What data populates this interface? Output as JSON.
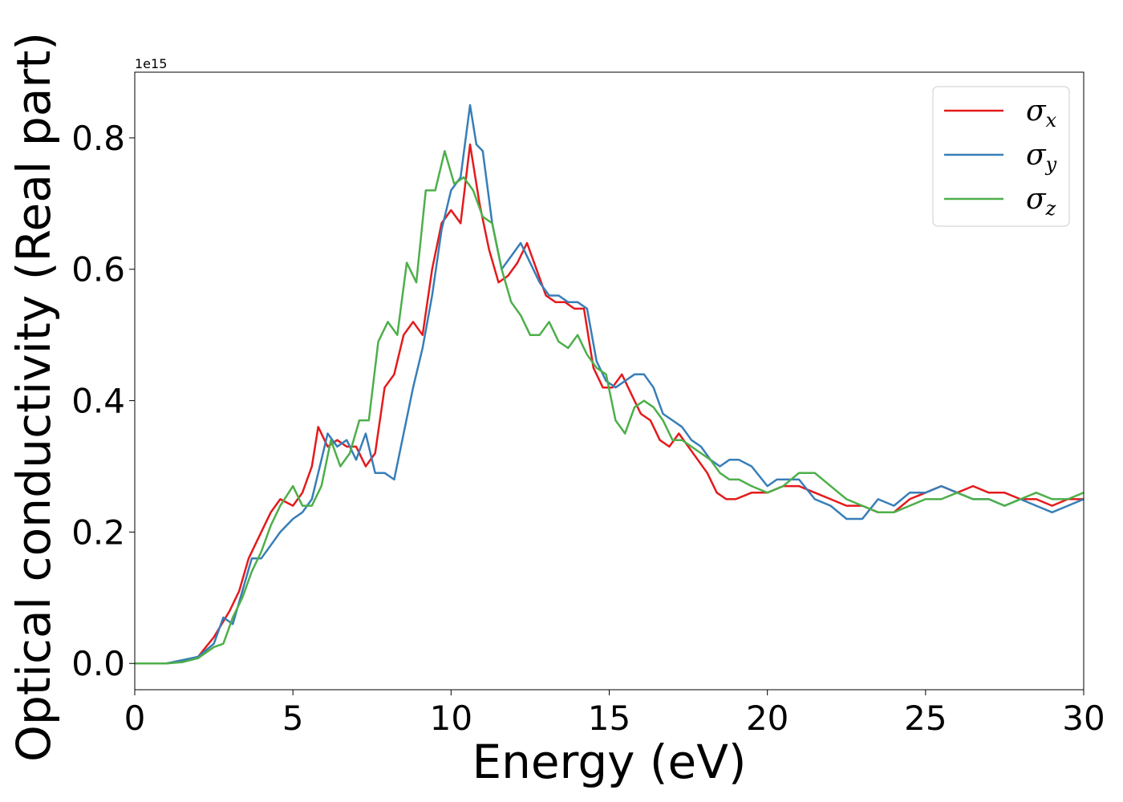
{
  "chart_data": {
    "type": "line",
    "title": "",
    "xlabel": "Energy (eV)",
    "ylabel": "Optical conductivity (Real part)",
    "y_offset_text": "1e15",
    "xlim": [
      0,
      30
    ],
    "ylim": [
      -0.04,
      0.9
    ],
    "xticks": [
      0,
      5,
      10,
      15,
      20,
      25,
      30
    ],
    "xtick_labels": [
      "0",
      "5",
      "10",
      "15",
      "20",
      "25",
      "30"
    ],
    "yticks": [
      0.0,
      0.2,
      0.4,
      0.6,
      0.8
    ],
    "ytick_labels": [
      "0.0",
      "0.2",
      "0.4",
      "0.6",
      "0.8"
    ],
    "grid": false,
    "legend_position": "top-right",
    "series": [
      {
        "name": "σx",
        "symbol": "σ",
        "subscript": "x",
        "color": "#e41a1c",
        "x": [
          0,
          1,
          1.5,
          2,
          2.5,
          3,
          3.3,
          3.6,
          4,
          4.3,
          4.6,
          5,
          5.3,
          5.6,
          5.8,
          6.1,
          6.4,
          6.7,
          7,
          7.3,
          7.6,
          7.9,
          8.2,
          8.5,
          8.8,
          9.1,
          9.4,
          9.7,
          10,
          10.3,
          10.6,
          10.9,
          11.2,
          11.5,
          11.8,
          12.1,
          12.4,
          12.7,
          13,
          13.3,
          13.6,
          13.9,
          14.2,
          14.5,
          14.8,
          15.1,
          15.4,
          15.7,
          16,
          16.3,
          16.6,
          16.9,
          17.2,
          17.5,
          17.8,
          18.1,
          18.4,
          18.7,
          19,
          19.5,
          20,
          20.5,
          21,
          21.5,
          22,
          22.5,
          23,
          23.5,
          24,
          24.5,
          25,
          25.5,
          26,
          26.5,
          27,
          27.5,
          28,
          28.5,
          29,
          29.5,
          30
        ],
        "y": [
          0.0,
          0.0,
          0.003,
          0.01,
          0.04,
          0.08,
          0.11,
          0.16,
          0.2,
          0.23,
          0.25,
          0.24,
          0.26,
          0.3,
          0.36,
          0.33,
          0.34,
          0.33,
          0.33,
          0.3,
          0.32,
          0.42,
          0.44,
          0.5,
          0.52,
          0.5,
          0.6,
          0.67,
          0.69,
          0.67,
          0.79,
          0.7,
          0.63,
          0.58,
          0.59,
          0.61,
          0.64,
          0.6,
          0.56,
          0.55,
          0.55,
          0.54,
          0.54,
          0.45,
          0.42,
          0.42,
          0.44,
          0.41,
          0.38,
          0.37,
          0.34,
          0.33,
          0.35,
          0.33,
          0.31,
          0.29,
          0.26,
          0.25,
          0.25,
          0.26,
          0.26,
          0.27,
          0.27,
          0.26,
          0.25,
          0.24,
          0.24,
          0.23,
          0.23,
          0.25,
          0.26,
          0.27,
          0.26,
          0.27,
          0.26,
          0.26,
          0.25,
          0.25,
          0.24,
          0.25,
          0.25
        ]
      },
      {
        "name": "σy",
        "symbol": "σ",
        "subscript": "y",
        "color": "#377eb8",
        "x": [
          0,
          1,
          1.5,
          2,
          2.5,
          2.8,
          3.1,
          3.4,
          3.7,
          4,
          4.3,
          4.6,
          5,
          5.3,
          5.6,
          5.9,
          6.1,
          6.4,
          6.7,
          7,
          7.3,
          7.6,
          7.9,
          8.2,
          8.5,
          8.8,
          9.1,
          9.4,
          9.7,
          10,
          10.3,
          10.6,
          10.8,
          11,
          11.3,
          11.6,
          11.9,
          12.2,
          12.5,
          12.8,
          13.1,
          13.4,
          13.7,
          14,
          14.3,
          14.6,
          14.9,
          15.2,
          15.5,
          15.8,
          16.1,
          16.4,
          16.7,
          17,
          17.3,
          17.6,
          17.9,
          18.2,
          18.5,
          18.8,
          19.1,
          19.5,
          20,
          20.3,
          20.6,
          21,
          21.5,
          22,
          22.5,
          23,
          23.5,
          24,
          24.5,
          25,
          25.5,
          26,
          26.5,
          27,
          27.5,
          28,
          28.5,
          29,
          29.5,
          30
        ],
        "y": [
          0.0,
          0.0,
          0.005,
          0.01,
          0.03,
          0.07,
          0.06,
          0.11,
          0.16,
          0.16,
          0.18,
          0.2,
          0.22,
          0.23,
          0.25,
          0.31,
          0.35,
          0.33,
          0.34,
          0.31,
          0.35,
          0.29,
          0.29,
          0.28,
          0.35,
          0.42,
          0.48,
          0.56,
          0.66,
          0.72,
          0.74,
          0.85,
          0.79,
          0.78,
          0.67,
          0.6,
          0.62,
          0.64,
          0.61,
          0.58,
          0.56,
          0.56,
          0.55,
          0.55,
          0.54,
          0.46,
          0.43,
          0.42,
          0.43,
          0.44,
          0.44,
          0.42,
          0.38,
          0.37,
          0.36,
          0.34,
          0.33,
          0.31,
          0.3,
          0.31,
          0.31,
          0.3,
          0.27,
          0.28,
          0.28,
          0.28,
          0.25,
          0.24,
          0.22,
          0.22,
          0.25,
          0.24,
          0.26,
          0.26,
          0.27,
          0.26,
          0.25,
          0.25,
          0.24,
          0.25,
          0.24,
          0.23,
          0.24,
          0.25
        ]
      },
      {
        "name": "σz",
        "symbol": "σ",
        "subscript": "z",
        "color": "#4daf4a",
        "x": [
          0,
          1,
          1.5,
          2,
          2.5,
          2.8,
          3.1,
          3.4,
          3.7,
          4,
          4.3,
          4.6,
          5,
          5.3,
          5.6,
          5.9,
          6.2,
          6.5,
          6.8,
          7.1,
          7.4,
          7.7,
          8,
          8.3,
          8.6,
          8.9,
          9.2,
          9.5,
          9.8,
          10.1,
          10.4,
          10.7,
          11,
          11.3,
          11.6,
          11.9,
          12.2,
          12.5,
          12.8,
          13.1,
          13.4,
          13.7,
          14,
          14.3,
          14.6,
          14.9,
          15.2,
          15.5,
          15.8,
          16.1,
          16.4,
          16.7,
          17,
          17.3,
          17.6,
          17.9,
          18.2,
          18.5,
          18.8,
          19.1,
          19.5,
          20,
          20.5,
          21,
          21.5,
          22,
          22.5,
          23,
          23.5,
          24,
          24.5,
          25,
          25.5,
          26,
          26.5,
          27,
          27.5,
          28,
          28.5,
          29,
          29.5,
          30
        ],
        "y": [
          0.0,
          0.0,
          0.002,
          0.008,
          0.025,
          0.03,
          0.07,
          0.1,
          0.14,
          0.17,
          0.21,
          0.24,
          0.27,
          0.24,
          0.24,
          0.27,
          0.34,
          0.3,
          0.32,
          0.37,
          0.37,
          0.49,
          0.52,
          0.5,
          0.61,
          0.58,
          0.72,
          0.72,
          0.78,
          0.73,
          0.74,
          0.72,
          0.68,
          0.67,
          0.6,
          0.55,
          0.53,
          0.5,
          0.5,
          0.52,
          0.49,
          0.48,
          0.5,
          0.47,
          0.45,
          0.44,
          0.37,
          0.35,
          0.39,
          0.4,
          0.39,
          0.37,
          0.34,
          0.34,
          0.33,
          0.32,
          0.31,
          0.29,
          0.28,
          0.28,
          0.27,
          0.26,
          0.27,
          0.29,
          0.29,
          0.27,
          0.25,
          0.24,
          0.23,
          0.23,
          0.24,
          0.25,
          0.25,
          0.26,
          0.25,
          0.25,
          0.24,
          0.25,
          0.26,
          0.25,
          0.25,
          0.26
        ]
      }
    ]
  }
}
